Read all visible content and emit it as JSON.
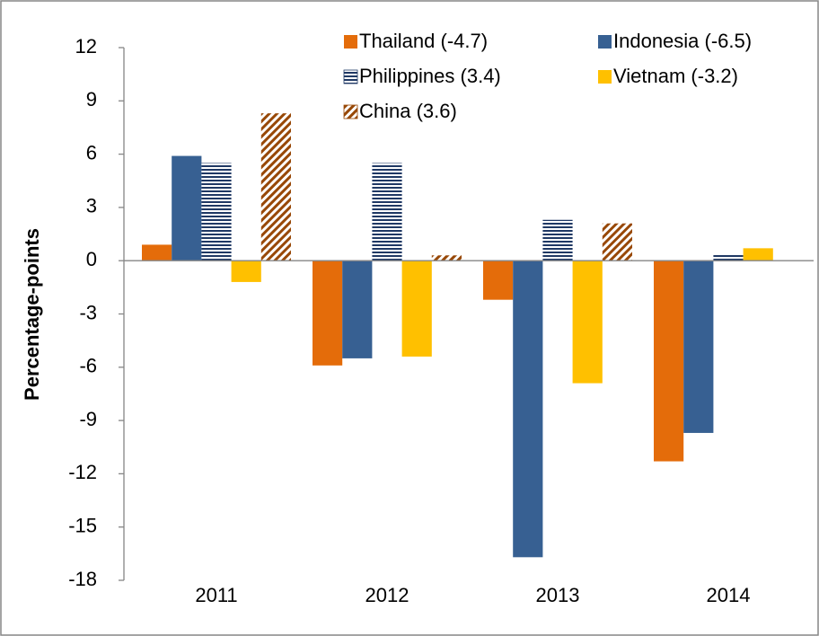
{
  "chart_data": {
    "type": "bar",
    "y_label": "Percentage-points",
    "categories": [
      "2011",
      "2012",
      "2013",
      "2014"
    ],
    "series": [
      {
        "name": "Thailand (-4.7)",
        "color": "#e46c0a",
        "values": [
          0.9,
          -5.9,
          -2.2,
          -11.3
        ]
      },
      {
        "name": "Indonesia (-6.5)",
        "color": "#376092",
        "values": [
          5.9,
          -5.5,
          -16.7,
          -9.7
        ]
      },
      {
        "name": "Philippines (3.4)",
        "color": "#1f3864",
        "pattern": "horizontal",
        "values": [
          5.5,
          5.5,
          2.3,
          0.4
        ]
      },
      {
        "name": "Vietnam (-3.2)",
        "color": "#ffc000",
        "values": [
          -1.2,
          -5.4,
          -6.9,
          0.7
        ]
      },
      {
        "name": "China (3.6)",
        "color": "#984807",
        "pattern": "diagonal",
        "values": [
          8.3,
          0.3,
          2.1,
          null
        ]
      }
    ],
    "ylim": [
      -18,
      12
    ],
    "yticks": [
      -18,
      -15,
      -12,
      -9,
      -6,
      -3,
      0,
      3,
      6,
      9,
      12
    ],
    "grid": false,
    "legend": "top"
  }
}
